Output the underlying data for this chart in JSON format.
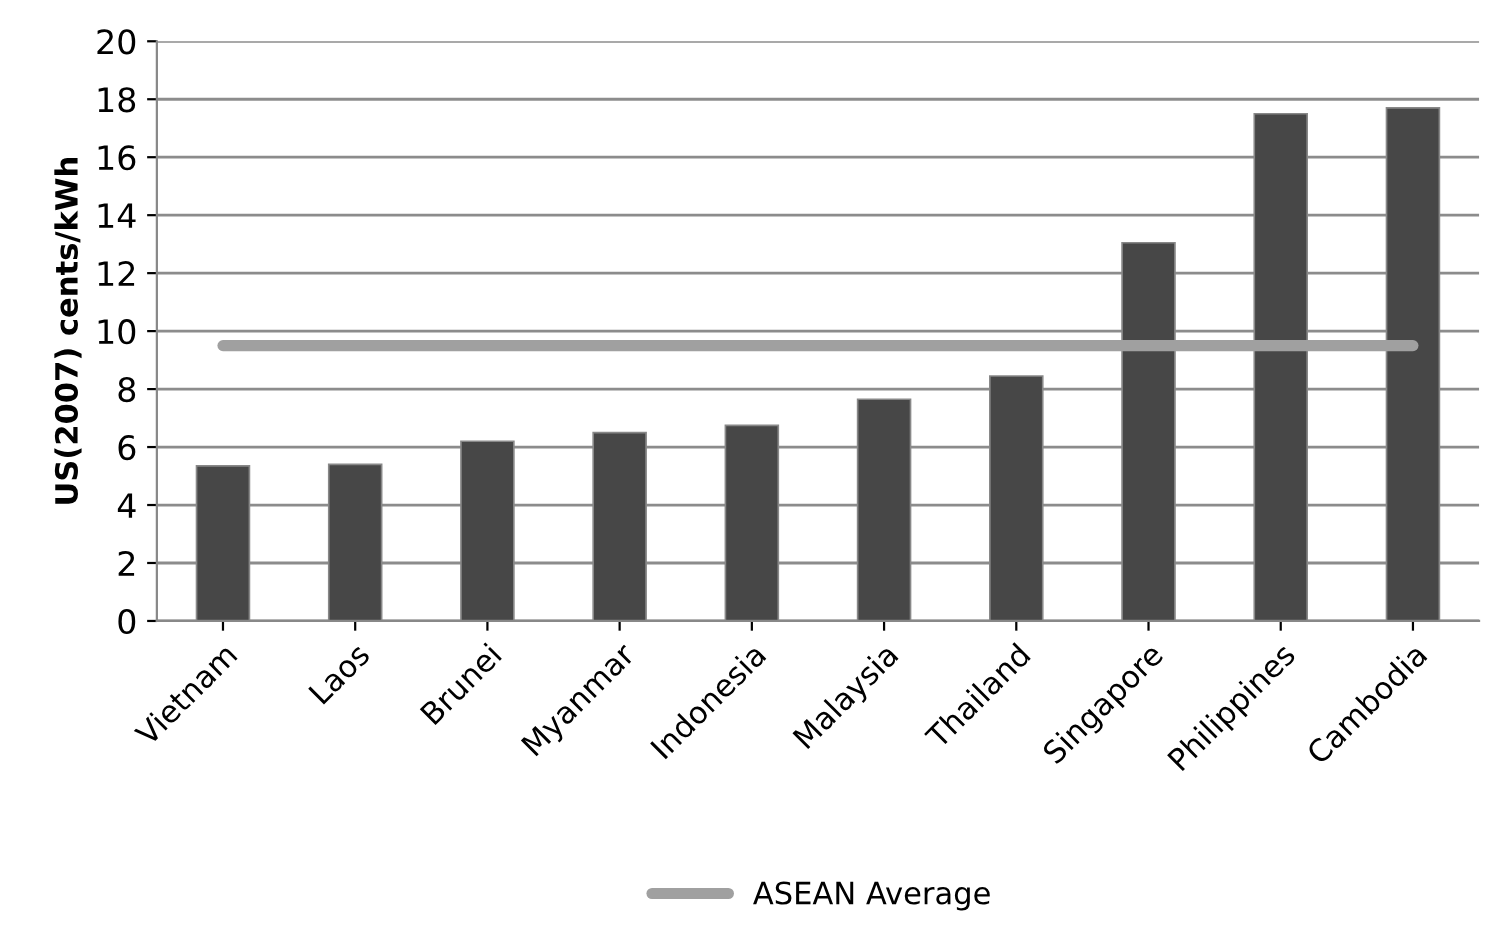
{
  "chart_data": {
    "type": "bar",
    "ylabel": "US(2007) cents/kWh",
    "categories": [
      "Vietnam",
      "Laos",
      "Brunei",
      "Myanmar",
      "Indonesia",
      "Malaysia",
      "Thailand",
      "Singapore",
      "Philippines",
      "Cambodia"
    ],
    "series": [
      {
        "color": "#474747",
        "values": [
          5.35,
          5.4,
          6.2,
          6.5,
          6.75,
          7.65,
          8.45,
          13.05,
          17.5,
          17.7
        ]
      },
      {
        "type": "line",
        "name": "ASEAN Average",
        "color": "#a0a0a0",
        "values": [
          9.5,
          9.5,
          9.5,
          9.5,
          9.5,
          9.5,
          9.5,
          9.5,
          9.5,
          9.5
        ]
      }
    ],
    "ylim": [
      0,
      20
    ],
    "yticks": [
      0,
      2,
      4,
      6,
      8,
      10,
      12,
      14,
      16,
      18,
      20
    ],
    "grid": "y",
    "legend": "bottom"
  }
}
